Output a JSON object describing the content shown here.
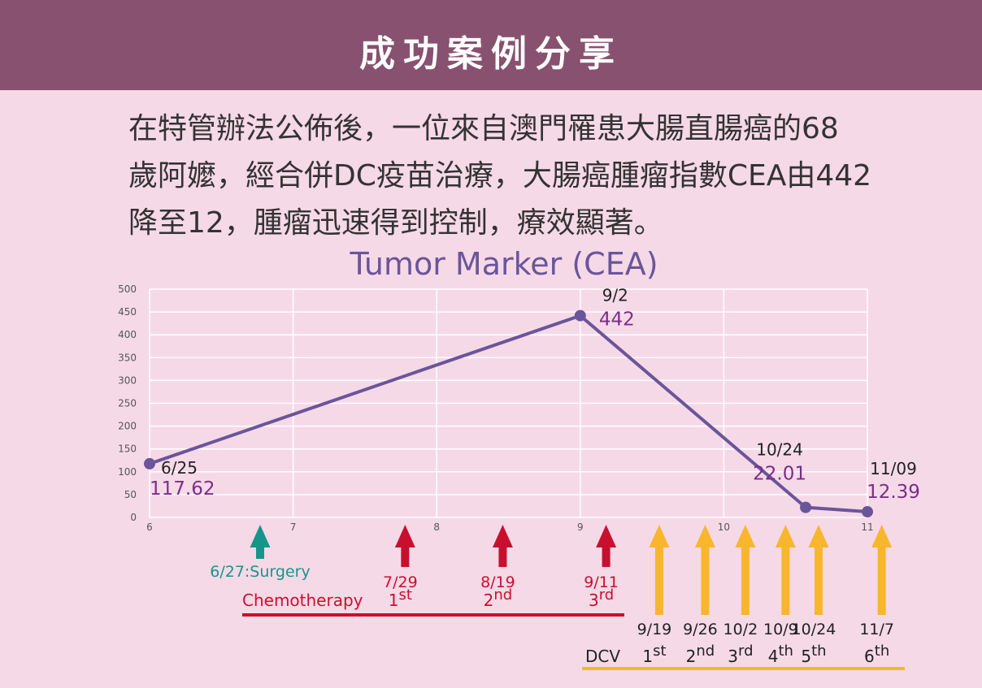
{
  "header": {
    "title": "成功案例分享"
  },
  "intro": {
    "lines": [
      "在特管辦法公佈後，一位來自澳門罹患大腸直腸癌的68",
      "歲阿嬤，經合併DC疫苗治療，大腸癌腫瘤指數CEA由442",
      "降至12，腫瘤迅速得到控制，療效顯著。"
    ]
  },
  "colors": {
    "header_bg": "#87516f",
    "background": "#f6d9e7",
    "line": "#6a559b",
    "value_label": "#7b2d8b",
    "title": "#6a559b",
    "surgery": "#16958a",
    "chemo": "#c8102e",
    "dcv": "#f8b62c"
  },
  "chart_data": {
    "type": "line",
    "title": "Tumor Marker (CEA)",
    "x_ticks": [
      "6",
      "7",
      "8",
      "9",
      "10",
      "11"
    ],
    "y_ticks": [
      "0",
      "50",
      "100",
      "150",
      "200",
      "250",
      "300",
      "350",
      "400",
      "450",
      "500"
    ],
    "xlim": [
      6,
      11
    ],
    "ylim": [
      0,
      500
    ],
    "grid": true,
    "series": [
      {
        "points": [
          {
            "x": 6.0,
            "y": 117.62,
            "date": "6/25",
            "label": "117.62"
          },
          {
            "x": 9.0,
            "y": 442,
            "date": "9/2",
            "label": "442"
          },
          {
            "x": 10.57,
            "y": 22.01,
            "date": "10/24",
            "label": "22.01"
          },
          {
            "x": 11.0,
            "y": 12.39,
            "date": "11/09",
            "label": "12.39"
          }
        ]
      }
    ],
    "events": {
      "surgery": {
        "x": 6.77,
        "label": "6/27:Surgery"
      },
      "chemotherapy": {
        "label": "Chemotherapy",
        "doses": [
          {
            "x": 7.78,
            "date": "7/29",
            "ord": "1",
            "sup": "st"
          },
          {
            "x": 8.46,
            "date": "8/19",
            "ord": "2",
            "sup": "nd"
          },
          {
            "x": 9.18,
            "date": "9/11",
            "ord": "3",
            "sup": "rd"
          }
        ]
      },
      "dcv": {
        "label": "DCV",
        "doses": [
          {
            "x": 9.55,
            "date": "9/19",
            "ord": "1",
            "sup": "st"
          },
          {
            "x": 9.87,
            "date": "9/26",
            "ord": "2",
            "sup": "nd"
          },
          {
            "x": 10.15,
            "date": "10/2",
            "ord": "3",
            "sup": "rd"
          },
          {
            "x": 10.43,
            "date": "10/9",
            "ord": "4",
            "sup": "th"
          },
          {
            "x": 10.66,
            "date": "10/24",
            "ord": "5",
            "sup": "th"
          },
          {
            "x": 11.1,
            "date": "11/7",
            "ord": "6",
            "sup": "th"
          }
        ]
      }
    }
  }
}
